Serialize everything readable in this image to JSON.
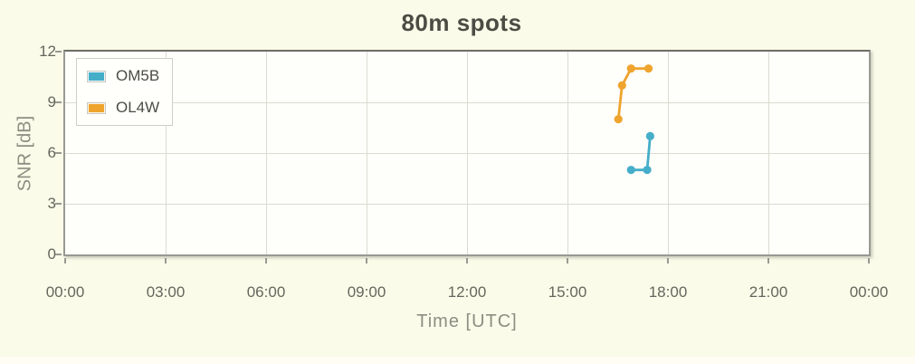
{
  "title": "80m spots",
  "colors": {
    "page_background": "#fbfbe9",
    "plot_background": "#fefefa",
    "plot_border": "#999993",
    "gridline": "#dcdcd2",
    "title_text": "#4c4c44",
    "tick_text": "#66665e",
    "axis_title_text": "#8d8d83",
    "series_om5b": "#45aec9",
    "series_ol4w": "#efa42d"
  },
  "chart_data": {
    "type": "line",
    "title": "80m spots",
    "xlabel": "Time [UTC]",
    "ylabel": "SNR [dB]",
    "xlim_hours": [
      0,
      24
    ],
    "ylim": [
      0,
      12
    ],
    "grid": true,
    "legend_position": "top-left",
    "x_ticks_hours": [
      0,
      3,
      6,
      9,
      12,
      15,
      18,
      21,
      24
    ],
    "x_tick_labels": [
      "00:00",
      "03:00",
      "06:00",
      "09:00",
      "12:00",
      "15:00",
      "18:00",
      "21:00",
      "00:00"
    ],
    "y_ticks": [
      0,
      3,
      6,
      9,
      12
    ],
    "y_tick_labels": [
      "0",
      "3",
      "6",
      "9",
      "12"
    ],
    "series": [
      {
        "name": "OM5B",
        "color": "#45aec9",
        "points": [
          {
            "time_utc": "16:54",
            "hours": 16.9,
            "snr_db": 5
          },
          {
            "time_utc": "17:23",
            "hours": 17.38,
            "snr_db": 5
          },
          {
            "time_utc": "17:28",
            "hours": 17.47,
            "snr_db": 7
          }
        ]
      },
      {
        "name": "OL4W",
        "color": "#efa42d",
        "points": [
          {
            "time_utc": "16:31",
            "hours": 16.52,
            "snr_db": 8
          },
          {
            "time_utc": "16:38",
            "hours": 16.63,
            "snr_db": 10
          },
          {
            "time_utc": "16:54",
            "hours": 16.9,
            "snr_db": 11
          },
          {
            "time_utc": "17:25",
            "hours": 17.42,
            "snr_db": 11
          }
        ]
      }
    ]
  }
}
